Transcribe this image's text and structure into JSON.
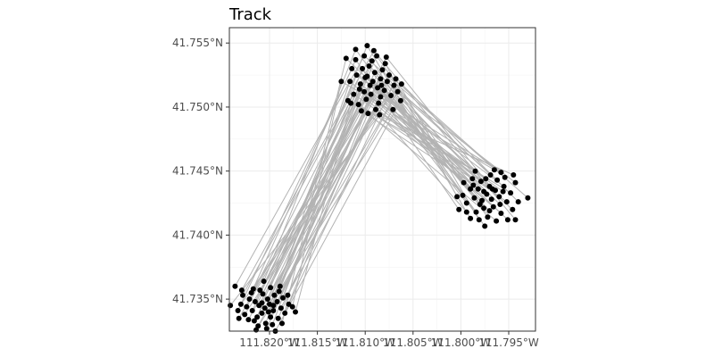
{
  "chart_data": {
    "type": "scatter",
    "title": "Track",
    "xlabel": "",
    "ylabel": "",
    "x_unit": "degrees longitude (negative = W)",
    "y_unit": "degrees latitude (N)",
    "xlim": [
      -111.8242,
      -111.7922
    ],
    "ylim": [
      41.7325,
      41.7562
    ],
    "x_ticks": [
      -111.82,
      -111.815,
      -111.81,
      -111.805,
      -111.8,
      -111.795
    ],
    "x_tick_labels": [
      "111.820°W",
      "111.815°W",
      "111.810°W",
      "111.805°W",
      "111.800°W",
      "111.795°W"
    ],
    "y_ticks": [
      41.735,
      41.74,
      41.745,
      41.75,
      41.755
    ],
    "y_tick_labels": [
      "41.735°N",
      "41.740°N",
      "41.745°N",
      "41.750°N",
      "41.755°N"
    ],
    "grid": true,
    "legend": "none",
    "track_line_color": "#b3b3b3",
    "point_color": "#000000",
    "series": [
      {
        "cluster": "southwest",
        "points": [
          [
            -111.8215,
            41.7348
          ],
          [
            -111.8211,
            41.7345
          ],
          [
            -111.8205,
            41.7343
          ],
          [
            -111.82,
            41.7346
          ],
          [
            -111.8196,
            41.7341
          ],
          [
            -111.8208,
            41.7339
          ],
          [
            -111.8218,
            41.7341
          ],
          [
            -111.8202,
            41.735
          ],
          [
            -111.8192,
            41.7348
          ],
          [
            -111.8224,
            41.7344
          ],
          [
            -111.8213,
            41.7336
          ],
          [
            -111.8199,
            41.7336
          ],
          [
            -111.8188,
            41.7343
          ],
          [
            -111.8207,
            41.7354
          ],
          [
            -111.8221,
            41.735
          ],
          [
            -111.823,
            41.7346
          ],
          [
            -111.8195,
            41.7353
          ],
          [
            -111.8184,
            41.7339
          ],
          [
            -111.8204,
            41.7331
          ],
          [
            -111.8216,
            41.7333
          ],
          [
            -111.8226,
            41.7338
          ],
          [
            -111.8186,
            41.7351
          ],
          [
            -111.8197,
            41.733
          ],
          [
            -111.821,
            41.7357
          ],
          [
            -111.8233,
            41.7341
          ],
          [
            -111.818,
            41.7346
          ],
          [
            -111.8191,
            41.7335
          ],
          [
            -111.8219,
            41.7355
          ],
          [
            -111.8203,
            41.7327
          ],
          [
            -111.8228,
            41.7353
          ],
          [
            -111.8212,
            41.7329
          ],
          [
            -111.819,
            41.7356
          ],
          [
            -111.8236,
            41.736
          ],
          [
            -111.8229,
            41.7357
          ],
          [
            -111.8206,
            41.7364
          ],
          [
            -111.8199,
            41.7359
          ],
          [
            -111.8176,
            41.7344
          ],
          [
            -111.8173,
            41.734
          ],
          [
            -111.8181,
            41.7353
          ],
          [
            -111.8194,
            41.7325
          ],
          [
            -111.8214,
            41.7326
          ],
          [
            -111.8241,
            41.7345
          ],
          [
            -111.8222,
            41.7334
          ],
          [
            -111.8208,
            41.7347
          ],
          [
            -111.8201,
            41.734
          ],
          [
            -111.8187,
            41.7331
          ],
          [
            -111.8232,
            41.7335
          ],
          [
            -111.8217,
            41.7358
          ],
          [
            -111.8189,
            41.736
          ],
          [
            -111.8196,
            41.7345
          ]
        ]
      },
      {
        "cluster": "north",
        "points": [
          [
            -111.8098,
            41.7524
          ],
          [
            -111.8092,
            41.752
          ],
          [
            -111.8087,
            41.7515
          ],
          [
            -111.8101,
            41.7512
          ],
          [
            -111.8094,
            41.751
          ],
          [
            -111.8084,
            41.7522
          ],
          [
            -111.8105,
            41.7518
          ],
          [
            -111.809,
            41.7527
          ],
          [
            -111.808,
            41.7513
          ],
          [
            -111.8099,
            41.7506
          ],
          [
            -111.8109,
            41.7525
          ],
          [
            -111.8077,
            41.752
          ],
          [
            -111.8086,
            41.7503
          ],
          [
            -111.8096,
            41.7532
          ],
          [
            -111.8112,
            41.751
          ],
          [
            -111.8073,
            41.7509
          ],
          [
            -111.8103,
            41.753
          ],
          [
            -111.8082,
            41.7529
          ],
          [
            -111.8116,
            41.752
          ],
          [
            -111.8089,
            41.7498
          ],
          [
            -111.807,
            41.7517
          ],
          [
            -111.8107,
            41.7502
          ],
          [
            -111.8093,
            41.7536
          ],
          [
            -111.8075,
            41.7525
          ],
          [
            -111.8114,
            41.753
          ],
          [
            -111.8068,
            41.7522
          ],
          [
            -111.8097,
            41.7495
          ],
          [
            -111.811,
            41.7537
          ],
          [
            -111.8079,
            41.7534
          ],
          [
            -111.8118,
            41.7505
          ],
          [
            -111.8084,
            41.7508
          ],
          [
            -111.8066,
            41.7512
          ],
          [
            -111.8101,
            41.754
          ],
          [
            -111.8091,
            41.7544
          ],
          [
            -111.811,
            41.7545
          ],
          [
            -111.8098,
            41.7548
          ],
          [
            -111.8125,
            41.752
          ],
          [
            -111.8115,
            41.7503
          ],
          [
            -111.8062,
            41.7518
          ],
          [
            -111.8063,
            41.7505
          ],
          [
            -111.8071,
            41.7498
          ],
          [
            -111.8085,
            41.7494
          ],
          [
            -111.8104,
            41.7497
          ],
          [
            -111.8078,
            41.7539
          ],
          [
            -111.8088,
            41.754
          ],
          [
            -111.812,
            41.7538
          ],
          [
            -111.8095,
            41.7517
          ],
          [
            -111.8083,
            41.7517
          ],
          [
            -111.8106,
            41.7514
          ],
          [
            -111.81,
            41.7523
          ]
        ]
      },
      {
        "cluster": "east",
        "points": [
          [
            -111.7973,
            41.7432
          ],
          [
            -111.7968,
            41.7428
          ],
          [
            -111.7978,
            41.7427
          ],
          [
            -111.7964,
            41.7435
          ],
          [
            -111.7982,
            41.7436
          ],
          [
            -111.797,
            41.7438
          ],
          [
            -111.796,
            41.743
          ],
          [
            -111.7976,
            41.7421
          ],
          [
            -111.7986,
            41.7429
          ],
          [
            -111.7966,
            41.7422
          ],
          [
            -111.7955,
            41.7438
          ],
          [
            -111.7979,
            41.7442
          ],
          [
            -111.799,
            41.7436
          ],
          [
            -111.7962,
            41.7443
          ],
          [
            -111.7952,
            41.7426
          ],
          [
            -111.7984,
            41.7418
          ],
          [
            -111.7994,
            41.7425
          ],
          [
            -111.7972,
            41.7414
          ],
          [
            -111.7958,
            41.7417
          ],
          [
            -111.7948,
            41.7433
          ],
          [
            -111.7969,
            41.7447
          ],
          [
            -111.7988,
            41.7444
          ],
          [
            -111.7998,
            41.7431
          ],
          [
            -111.7954,
            41.7445
          ],
          [
            -111.7946,
            41.742
          ],
          [
            -111.7981,
            41.7412
          ],
          [
            -111.7963,
            41.7411
          ],
          [
            -111.8002,
            41.742
          ],
          [
            -111.8004,
            41.743
          ],
          [
            -111.7985,
            41.745
          ],
          [
            -111.7958,
            41.7449
          ],
          [
            -111.7943,
            41.7441
          ],
          [
            -111.793,
            41.7429
          ],
          [
            -111.7943,
            41.7412
          ],
          [
            -111.7975,
            41.7407
          ],
          [
            -111.799,
            41.7413
          ],
          [
            -111.7965,
            41.7451
          ],
          [
            -111.7945,
            41.7447
          ],
          [
            -111.794,
            41.7426
          ],
          [
            -111.7997,
            41.7441
          ],
          [
            -111.7951,
            41.7412
          ],
          [
            -111.7994,
            41.7418
          ],
          [
            -111.7976,
            41.7434
          ],
          [
            -111.7967,
            41.7436
          ],
          [
            -111.798,
            41.7424
          ],
          [
            -111.7959,
            41.7424
          ],
          [
            -111.797,
            41.7419
          ],
          [
            -111.7987,
            41.7439
          ],
          [
            -111.7956,
            41.7434
          ],
          [
            -111.7974,
            41.7444
          ]
        ]
      }
    ],
    "track_order": "each point i links southwest[i] -> north[i] -> east[i]"
  }
}
